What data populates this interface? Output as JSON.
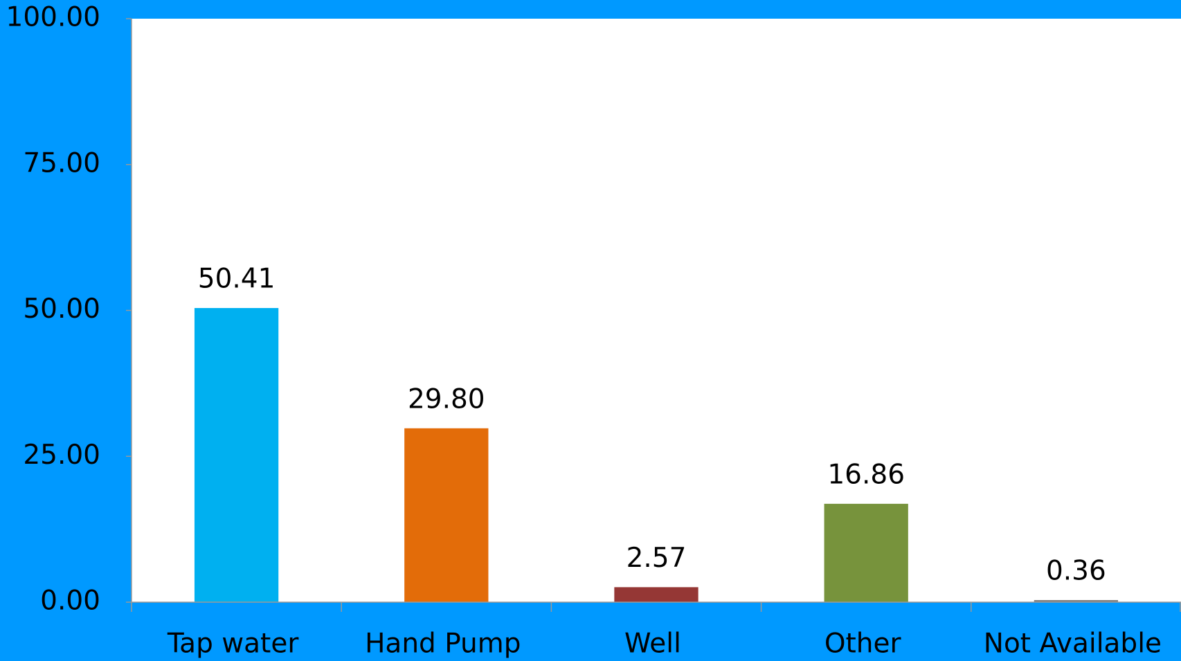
{
  "chart_data": {
    "type": "bar",
    "categories": [
      "Tap water",
      "Hand Pump",
      "Well",
      "Other",
      "Not Available"
    ],
    "values": [
      50.41,
      29.8,
      2.57,
      16.86,
      0.36
    ],
    "value_labels": [
      "50.41",
      "29.80",
      "2.57",
      "16.86",
      "0.36"
    ],
    "colors": [
      "#00B0F0",
      "#E36C09",
      "#953735",
      "#77933C",
      "#7F7F7F"
    ],
    "ylim": [
      0,
      100
    ],
    "yticks": [
      {
        "value": 0,
        "label": "0.00"
      },
      {
        "value": 25,
        "label": "25.00"
      },
      {
        "value": 50,
        "label": "50.00"
      },
      {
        "value": 75,
        "label": "75.00"
      },
      {
        "value": 100,
        "label": "100.00"
      }
    ],
    "grid": false
  }
}
